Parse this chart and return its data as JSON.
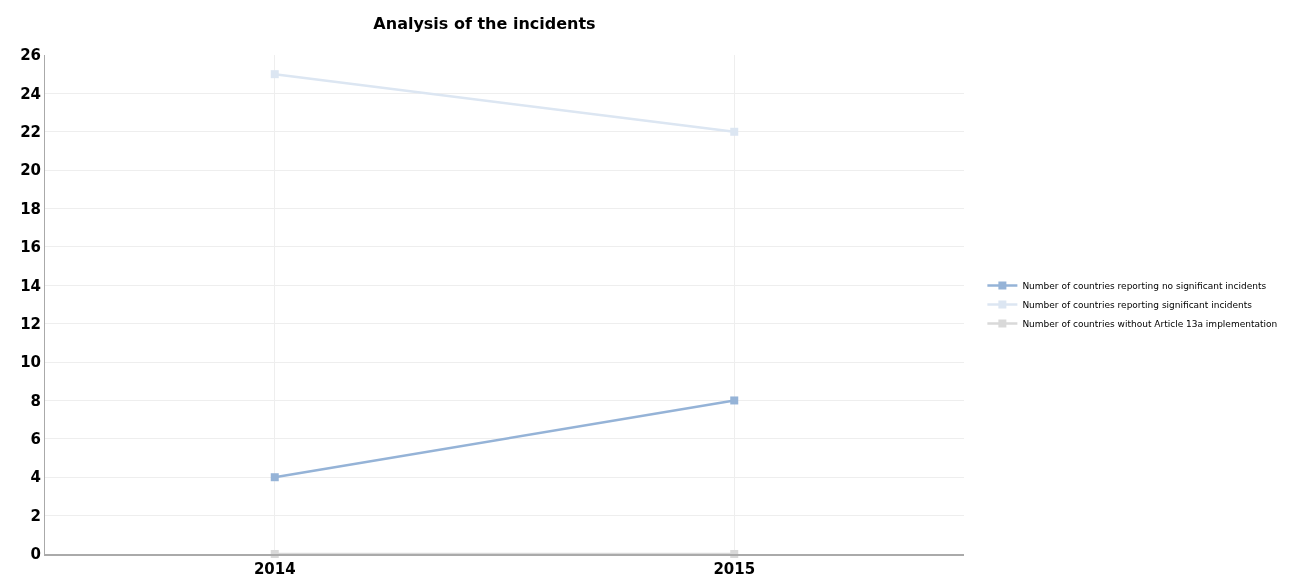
{
  "chart_data": {
    "type": "line",
    "title": "Analysis of the incidents",
    "categories": [
      "2014",
      "2015"
    ],
    "series": [
      {
        "name": "Number of countries reporting no significant incidents",
        "color": "#95b3d7",
        "values": [
          4,
          8
        ]
      },
      {
        "name": "Number of countries reporting significant incidents",
        "color": "#dce6f2",
        "values": [
          25,
          22
        ]
      },
      {
        "name": "Number of countries without Article 13a implementation",
        "color": "#d9d9d9",
        "values": [
          0,
          0
        ]
      }
    ],
    "ylim": [
      0,
      26
    ],
    "yticks": [
      0,
      2,
      4,
      6,
      8,
      10,
      12,
      14,
      16,
      18,
      20,
      22,
      24,
      26
    ],
    "grid": true,
    "legend": "right",
    "marker": "square",
    "line_style": "solid"
  }
}
